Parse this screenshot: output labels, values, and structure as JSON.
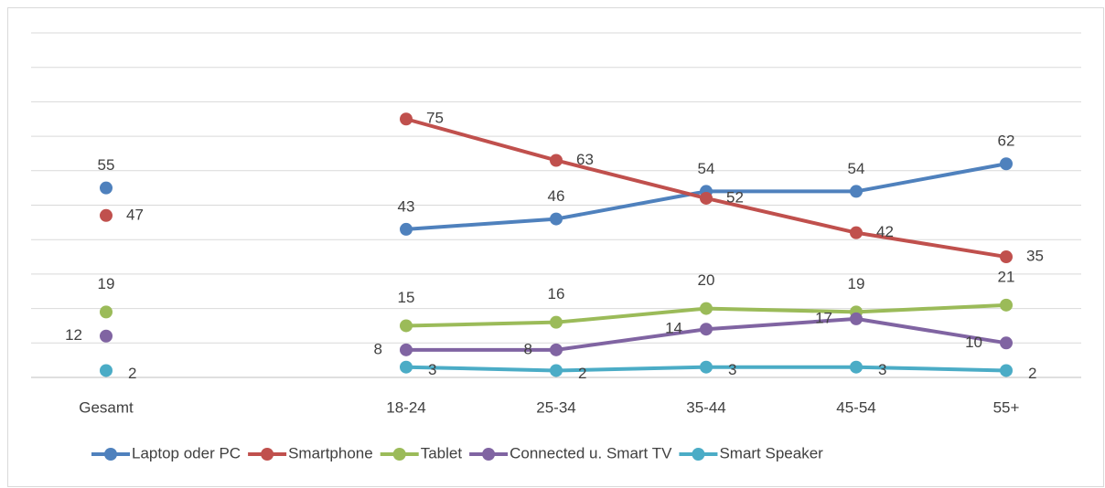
{
  "chart_data": {
    "type": "line",
    "categories": [
      "Gesamt",
      null,
      "18-24",
      "25-34",
      "35-44",
      "45-54",
      "55+"
    ],
    "series": [
      {
        "name": "Laptop oder PC",
        "color": "#4f81bd",
        "values": [
          55,
          null,
          43,
          46,
          54,
          54,
          62
        ]
      },
      {
        "name": "Smartphone",
        "color": "#c0504d",
        "values": [
          47,
          null,
          75,
          63,
          52,
          42,
          35
        ]
      },
      {
        "name": "Tablet",
        "color": "#9bbb59",
        "values": [
          19,
          null,
          15,
          16,
          20,
          19,
          21
        ]
      },
      {
        "name": "Connected u. Smart TV",
        "color": "#8064a2",
        "values": [
          12,
          null,
          8,
          8,
          14,
          17,
          10
        ]
      },
      {
        "name": "Smart Speaker",
        "color": "#4bacc6",
        "values": [
          2,
          null,
          3,
          2,
          3,
          3,
          2
        ]
      }
    ],
    "ylim": [
      0,
      100
    ],
    "yticks": [
      0,
      10,
      20,
      30,
      40,
      50,
      60,
      70,
      80,
      90,
      100
    ],
    "grid": true,
    "legend": "bottom"
  }
}
